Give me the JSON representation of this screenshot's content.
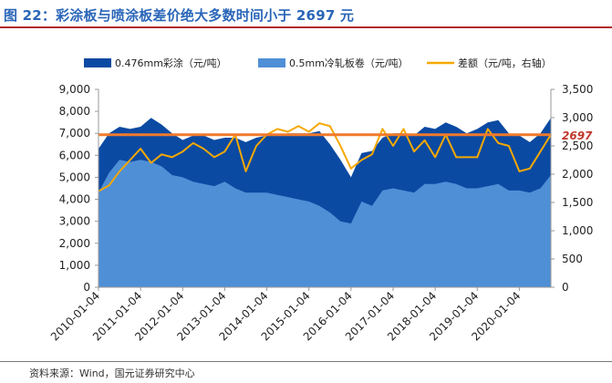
{
  "header": {
    "title": "图 22：彩涂板与喷涂板差价绝大多数时间小于 2697 元"
  },
  "footer": {
    "source": "资料来源：Wind，国元证券研究中心"
  },
  "colors": {
    "title": "#2a66b8",
    "series_dark": "#0b4aa3",
    "series_light": "#4f8fd6",
    "spread_line": "#f5a800",
    "reference_line": "#f07a2c",
    "annotation": "#c0392b"
  },
  "chart_data": {
    "type": "area",
    "title": "彩涂板与喷涂板差价绝大多数时间小于 2697 元",
    "x": [
      "2010-01",
      "2010-04",
      "2010-07",
      "2010-10",
      "2011-01",
      "2011-04",
      "2011-07",
      "2011-10",
      "2012-01",
      "2012-04",
      "2012-07",
      "2012-10",
      "2013-01",
      "2013-04",
      "2013-07",
      "2013-10",
      "2014-01",
      "2014-04",
      "2014-07",
      "2014-10",
      "2015-01",
      "2015-04",
      "2015-07",
      "2015-10",
      "2016-01",
      "2016-04",
      "2016-07",
      "2016-10",
      "2017-01",
      "2017-04",
      "2017-07",
      "2017-10",
      "2018-01",
      "2018-04",
      "2018-07",
      "2018-10",
      "2019-01",
      "2019-04",
      "2019-07",
      "2019-10",
      "2020-01",
      "2020-04",
      "2020-07",
      "2020-10"
    ],
    "x_tick_labels": [
      "2010-01-04",
      "2011-01-04",
      "2012-01-04",
      "2013-01-04",
      "2014-01-04",
      "2015-01-04",
      "2016-01-04",
      "2017-01-04",
      "2018-01-04",
      "2019-01-04",
      "2020-01-04"
    ],
    "series": [
      {
        "name": "0.476mm彩涂（元/吨）",
        "axis": "left",
        "style": "area",
        "color": "#0b4aa3",
        "values": [
          6300,
          7000,
          7300,
          7200,
          7300,
          7700,
          7400,
          7000,
          6700,
          6900,
          6900,
          6700,
          6800,
          6800,
          6600,
          6800,
          6900,
          6900,
          7000,
          7000,
          7000,
          7100,
          6500,
          5800,
          5000,
          6100,
          6200,
          6800,
          7000,
          7000,
          6900,
          7300,
          7200,
          7500,
          7300,
          7000,
          7200,
          7500,
          7600,
          7000,
          6900,
          6600,
          7000,
          7700
        ]
      },
      {
        "name": "0.5mm冷轧板卷（元/吨）",
        "axis": "left",
        "style": "area",
        "color": "#4f8fd6",
        "values": [
          4300,
          5200,
          5800,
          5700,
          5800,
          5700,
          5500,
          5100,
          5000,
          4800,
          4700,
          4600,
          4800,
          4500,
          4300,
          4300,
          4300,
          4200,
          4100,
          4000,
          3900,
          3700,
          3400,
          3000,
          2900,
          3900,
          3700,
          4400,
          4500,
          4400,
          4300,
          4700,
          4700,
          4800,
          4700,
          4500,
          4500,
          4600,
          4700,
          4400,
          4400,
          4300,
          4500,
          5100
        ]
      },
      {
        "name": "差额（元/吨，右轴）",
        "axis": "right",
        "style": "line",
        "color": "#f5a800",
        "values": [
          1700,
          1800,
          2050,
          2250,
          2450,
          2200,
          2350,
          2300,
          2400,
          2550,
          2450,
          2300,
          2400,
          2700,
          2050,
          2500,
          2700,
          2800,
          2750,
          2850,
          2750,
          2900,
          2850,
          2500,
          2100,
          2250,
          2350,
          2800,
          2500,
          2800,
          2400,
          2600,
          2300,
          2700,
          2300,
          2300,
          2300,
          2800,
          2550,
          2500,
          2050,
          2100,
          2400,
          2700
        ]
      },
      {
        "name": "2697",
        "axis": "right",
        "style": "hline",
        "color": "#f07a2c",
        "value": 2697
      }
    ],
    "annotation": "2697",
    "y_left": {
      "min": 0,
      "max": 9000,
      "ticks": [
        "0",
        "1,000",
        "2,000",
        "3,000",
        "4,000",
        "5,000",
        "6,000",
        "7,000",
        "8,000",
        "9,000"
      ]
    },
    "y_right": {
      "min": 0,
      "max": 3500,
      "ticks": [
        "0",
        "500",
        "1,000",
        "1,500",
        "2,000",
        "2,500",
        "3,000",
        "3,500"
      ]
    },
    "legend_position": "top",
    "grid": false
  }
}
